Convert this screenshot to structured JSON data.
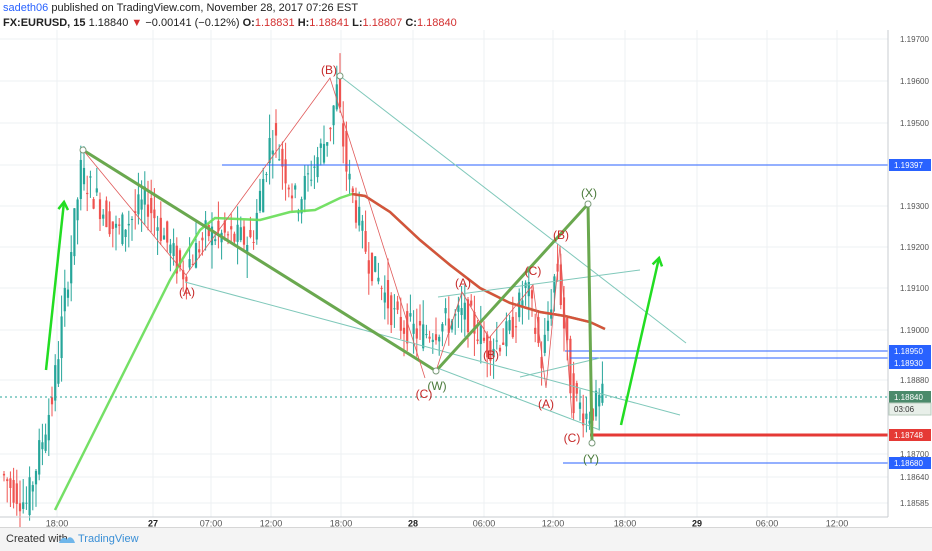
{
  "header": {
    "author": "sadeth06",
    "published_text": "published on TradingView.com, November 28, 2017 07:26 EST",
    "symbol": "FX:EURUSD, 15",
    "last_price": "1.18840",
    "change_arrow": "▼",
    "change": "−0.00141 (−0.12%)",
    "o_label": "O:",
    "o_value": "1.18831",
    "h_label": "H:",
    "h_value": "1.18841",
    "l_label": "L:",
    "l_value": "1.18807",
    "c_label": "C:",
    "c_value": "1.18840"
  },
  "footer": {
    "created_with": "Created with",
    "brand": "TradingView"
  },
  "chart_data": {
    "type": "candlestick",
    "x_tick_labels": [
      "18:00",
      "27",
      "07:00",
      "12:00",
      "18:00",
      "28",
      "06:00",
      "12:00",
      "18:00",
      "29",
      "06:00",
      "12:00"
    ],
    "y_tick_labels": [
      "1.19700",
      "1.19600",
      "1.19500",
      "1.19400",
      "1.19300",
      "1.19200",
      "1.19100",
      "1.19000",
      "1.18880",
      "1.18700",
      "1.18640",
      "1.18585"
    ],
    "y_range": [
      1.1855,
      1.1975
    ],
    "price_tags": [
      {
        "label": "1.19397",
        "price": 1.19397,
        "color": "#2962ff"
      },
      {
        "label": "1.18950",
        "price": 1.1895,
        "color": "#2962ff"
      },
      {
        "label": "1.18930",
        "price": 1.1893,
        "color": "#2962ff"
      },
      {
        "label": "1.18840",
        "price": 1.1884,
        "color": "#4b8a6b"
      },
      {
        "label": "03:06",
        "price": 1.1882,
        "color": "#ffffff"
      },
      {
        "label": "1.18748",
        "price": 1.18748,
        "color": "#e53935"
      },
      {
        "label": "1.18680",
        "price": 1.1868,
        "color": "#2962ff"
      }
    ],
    "wave_labels": [
      "(B)",
      "(A)",
      "(X)",
      "(B)",
      "(A)",
      "(C)",
      "(B)",
      "(W)",
      "(C)",
      "(A)",
      "(C)",
      "(Y)"
    ],
    "colors": {
      "up_candle": "#26a69a",
      "down_candle": "#ef5350",
      "ma_fast": "#66dd55",
      "ma_slow": "#e53935",
      "wave_line": "#6aa84f",
      "trend_line": "#7fc8ba",
      "arrow": "#22dd22",
      "support_line": "#e53935",
      "hline": "#2962ff"
    }
  }
}
